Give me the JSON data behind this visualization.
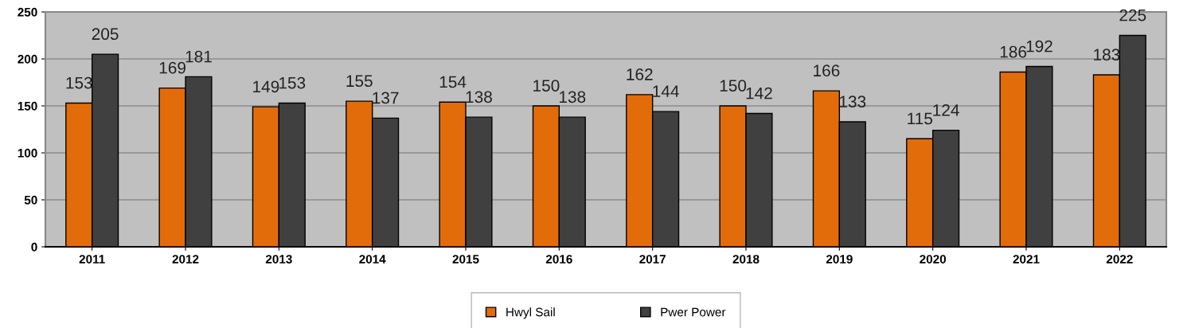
{
  "chart_data": {
    "type": "bar",
    "categories": [
      "2011",
      "2012",
      "2013",
      "2014",
      "2015",
      "2016",
      "2017",
      "2018",
      "2019",
      "2020",
      "2021",
      "2022"
    ],
    "series": [
      {
        "name": "Hwyl Sail",
        "color": "#e36c0a",
        "values": [
          153,
          169,
          149,
          155,
          154,
          150,
          162,
          150,
          166,
          115,
          186,
          183
        ]
      },
      {
        "name": "Pwer Power",
        "color": "#404040",
        "values": [
          205,
          181,
          153,
          137,
          138,
          138,
          144,
          142,
          133,
          124,
          192,
          225
        ]
      }
    ],
    "ylim": [
      0,
      250
    ],
    "yticks": [
      0,
      50,
      100,
      150,
      200,
      250
    ],
    "grid": "y",
    "legend": "bottom",
    "data_labels": true
  }
}
